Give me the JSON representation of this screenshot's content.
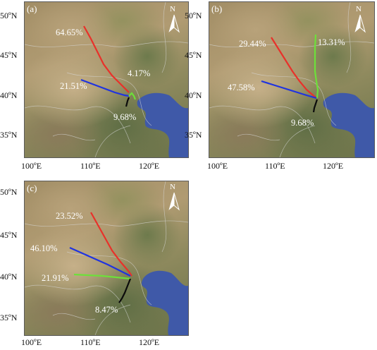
{
  "axes": {
    "lat_labels": [
      "50ºN",
      "45ºN",
      "40ºN",
      "35ºN"
    ],
    "lon_labels": [
      "100ºE",
      "110ºE",
      "120ºE"
    ]
  },
  "north_symbol": "N",
  "colors": {
    "red": "#e8312a",
    "blue": "#1f33e0",
    "green": "#6de03a",
    "black": "#0b0b0b",
    "sea": "#3f59a8"
  },
  "panels": [
    {
      "label": "(a)",
      "trajectories": [
        {
          "color_name": "red",
          "percent": "64.65%"
        },
        {
          "color_name": "blue",
          "percent": "21.51%"
        },
        {
          "color_name": "green",
          "percent": "4.17%"
        },
        {
          "color_name": "black",
          "percent": "9.68%"
        }
      ]
    },
    {
      "label": "(b)",
      "trajectories": [
        {
          "color_name": "red",
          "percent": "29.44%"
        },
        {
          "color_name": "green",
          "percent": "13.31%"
        },
        {
          "color_name": "blue",
          "percent": "47.58%"
        },
        {
          "color_name": "black",
          "percent": "9.68%"
        }
      ]
    },
    {
      "label": "(c)",
      "trajectories": [
        {
          "color_name": "red",
          "percent": "23.52%"
        },
        {
          "color_name": "blue",
          "percent": "46.10%"
        },
        {
          "color_name": "green",
          "percent": "21.91%"
        },
        {
          "color_name": "black",
          "percent": "8.47%"
        }
      ]
    }
  ]
}
